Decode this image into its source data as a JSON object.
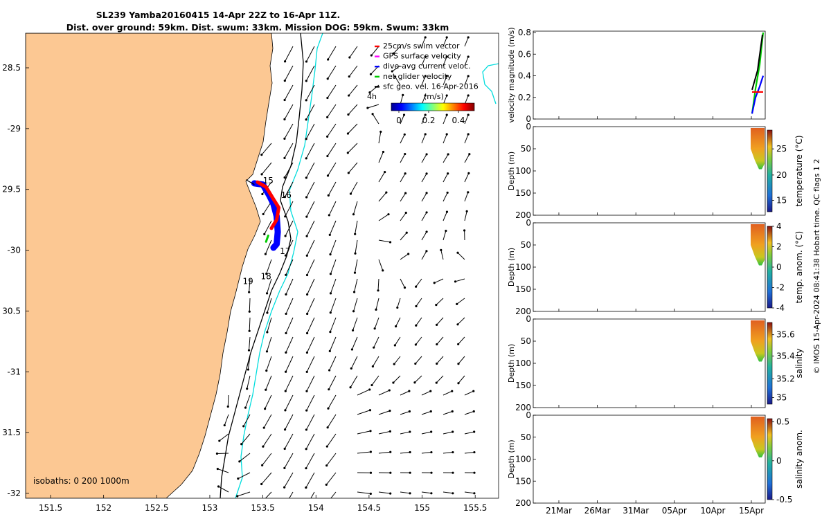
{
  "title": {
    "line1": "SL239 Yamba20160415 14-Apr 22Z to 16-Apr 11Z.",
    "line2": "Dist. over ground: 59km. Dist. swum: 33km. Mission DOG: 59km. Swum: 33km"
  },
  "map": {
    "lon_ticks": [
      "151.5",
      "152",
      "152.5",
      "153",
      "153.5",
      "154",
      "154.5",
      "155",
      "155.5"
    ],
    "lat_ticks": [
      "28.5",
      "-29",
      "29.5",
      "-30",
      "30.5",
      "-31",
      "31.5",
      "-32"
    ],
    "legend": [
      {
        "label": "25cm/s swim vector",
        "color": "#ff0000"
      },
      {
        "label": "GPS surface velocity",
        "color": "#ff00ff"
      },
      {
        "label": "dive-avg current veloc.",
        "color": "#0000ff"
      },
      {
        "label": "net glider velocity",
        "color": "#00cc00"
      },
      {
        "label": "sfc geo. vel. 16-Apr-2016",
        "color": "#000000"
      }
    ],
    "legend_marker": "4h",
    "colorbar_label": "(m/s)",
    "colorbar_ticks": [
      "0",
      "0.2",
      "0.4"
    ],
    "isobaths_label": "isobaths: 0   200  1000m",
    "day_labels": [
      "15",
      "16",
      "17",
      "18",
      "19"
    ],
    "colors": {
      "land": "#fcc893",
      "isobath_200": "#00dddd",
      "isobath_1000": "#000000"
    }
  },
  "panels": {
    "velocity": {
      "ylabel": "velocity magnitude (m/s)",
      "yticks": [
        "0",
        "0.2",
        "0.4",
        "0.6",
        "0.8"
      ]
    },
    "depth_ylabel": "Depth (m)",
    "depth_ticks": [
      "0",
      "50",
      "100",
      "150",
      "200"
    ],
    "temperature": {
      "label": "temperature (°C)",
      "ticks": [
        "15",
        "20",
        "25"
      ]
    },
    "temp_anom": {
      "label": "temp. anom. (°C)",
      "ticks": [
        "-4",
        "-2",
        "0",
        "2",
        "4"
      ]
    },
    "salinity": {
      "label": "salinity",
      "ticks": [
        "35",
        "35.2",
        "35.4",
        "35.6"
      ]
    },
    "sal_anom": {
      "label": "salinity anom.",
      "ticks": [
        "-0.5",
        "0",
        "0.5"
      ]
    },
    "time_ticks": [
      "21Mar",
      "26Mar",
      "31Mar",
      "05Apr",
      "10Apr",
      "15Apr"
    ]
  },
  "side_note": "© IMOS 15-Apr-2024 08:41:38 Hobart time. QC flags 1  2",
  "chart_data": [
    {
      "type": "scatter",
      "description_kind": "glider track map",
      "xlabel": "",
      "ylabel": "",
      "xlim": [
        151.25,
        155.75
      ],
      "ylim": [
        -32.0,
        -28.25
      ],
      "track_series": [
        {
          "name": "dive-avg current veloc.",
          "color": "#0000ff",
          "x": [
            153.42,
            153.5,
            153.56,
            153.6,
            153.63,
            153.64,
            153.63,
            153.6
          ],
          "y": [
            -29.45,
            -29.46,
            -29.55,
            -29.62,
            -29.72,
            -29.85,
            -29.95,
            -29.98
          ]
        },
        {
          "name": "25cm/s swim vector",
          "color": "#ff0000",
          "x": [
            153.45,
            153.53,
            153.6,
            153.65,
            153.63,
            153.58
          ],
          "y": [
            -29.44,
            -29.48,
            -29.58,
            -29.65,
            -29.75,
            -29.82
          ]
        },
        {
          "name": "net glider velocity",
          "color": "#00cc00",
          "x": [
            153.55,
            153.53
          ],
          "y": [
            -29.88,
            -29.93
          ]
        }
      ],
      "day_markers": [
        {
          "label": "15",
          "x": 153.5,
          "y": -29.45
        },
        {
          "label": "16",
          "x": 153.67,
          "y": -29.57
        },
        {
          "label": "17",
          "x": 153.66,
          "y": -30.03
        },
        {
          "label": "18",
          "x": 153.48,
          "y": -30.24
        },
        {
          "label": "19",
          "x": 153.31,
          "y": -30.28
        }
      ]
    },
    {
      "type": "line",
      "title": "",
      "ylabel": "velocity magnitude (m/s)",
      "ylim": [
        0,
        0.8
      ],
      "x": [
        "15Apr",
        "15Apr",
        "15Apr",
        "15Apr"
      ],
      "series": [
        {
          "name": "net glider velocity",
          "values": [
            0.05,
            0.28,
            0.5,
            0.8
          ]
        },
        {
          "name": "dive-avg current veloc.",
          "values": [
            0.05,
            0.2,
            0.3,
            0.4
          ]
        },
        {
          "name": "25cm/s swim vector",
          "values": [
            0.25,
            0.25,
            0.25,
            0.25
          ]
        }
      ]
    },
    {
      "type": "heatmap",
      "ylabel": "Depth (m)",
      "ylim": [
        200,
        0
      ],
      "colorbar": "temperature (°C)",
      "clim": [
        13.5,
        28
      ]
    },
    {
      "type": "heatmap",
      "ylabel": "Depth (m)",
      "ylim": [
        200,
        0
      ],
      "colorbar": "temp. anom. (°C)",
      "clim": [
        -4,
        4
      ]
    },
    {
      "type": "heatmap",
      "ylabel": "Depth (m)",
      "ylim": [
        200,
        0
      ],
      "colorbar": "salinity",
      "clim": [
        34.9,
        35.75
      ]
    },
    {
      "type": "heatmap",
      "ylabel": "Depth (m)",
      "ylim": [
        200,
        0
      ],
      "colorbar": "salinity anom.",
      "clim": [
        -0.5,
        0.55
      ]
    }
  ]
}
